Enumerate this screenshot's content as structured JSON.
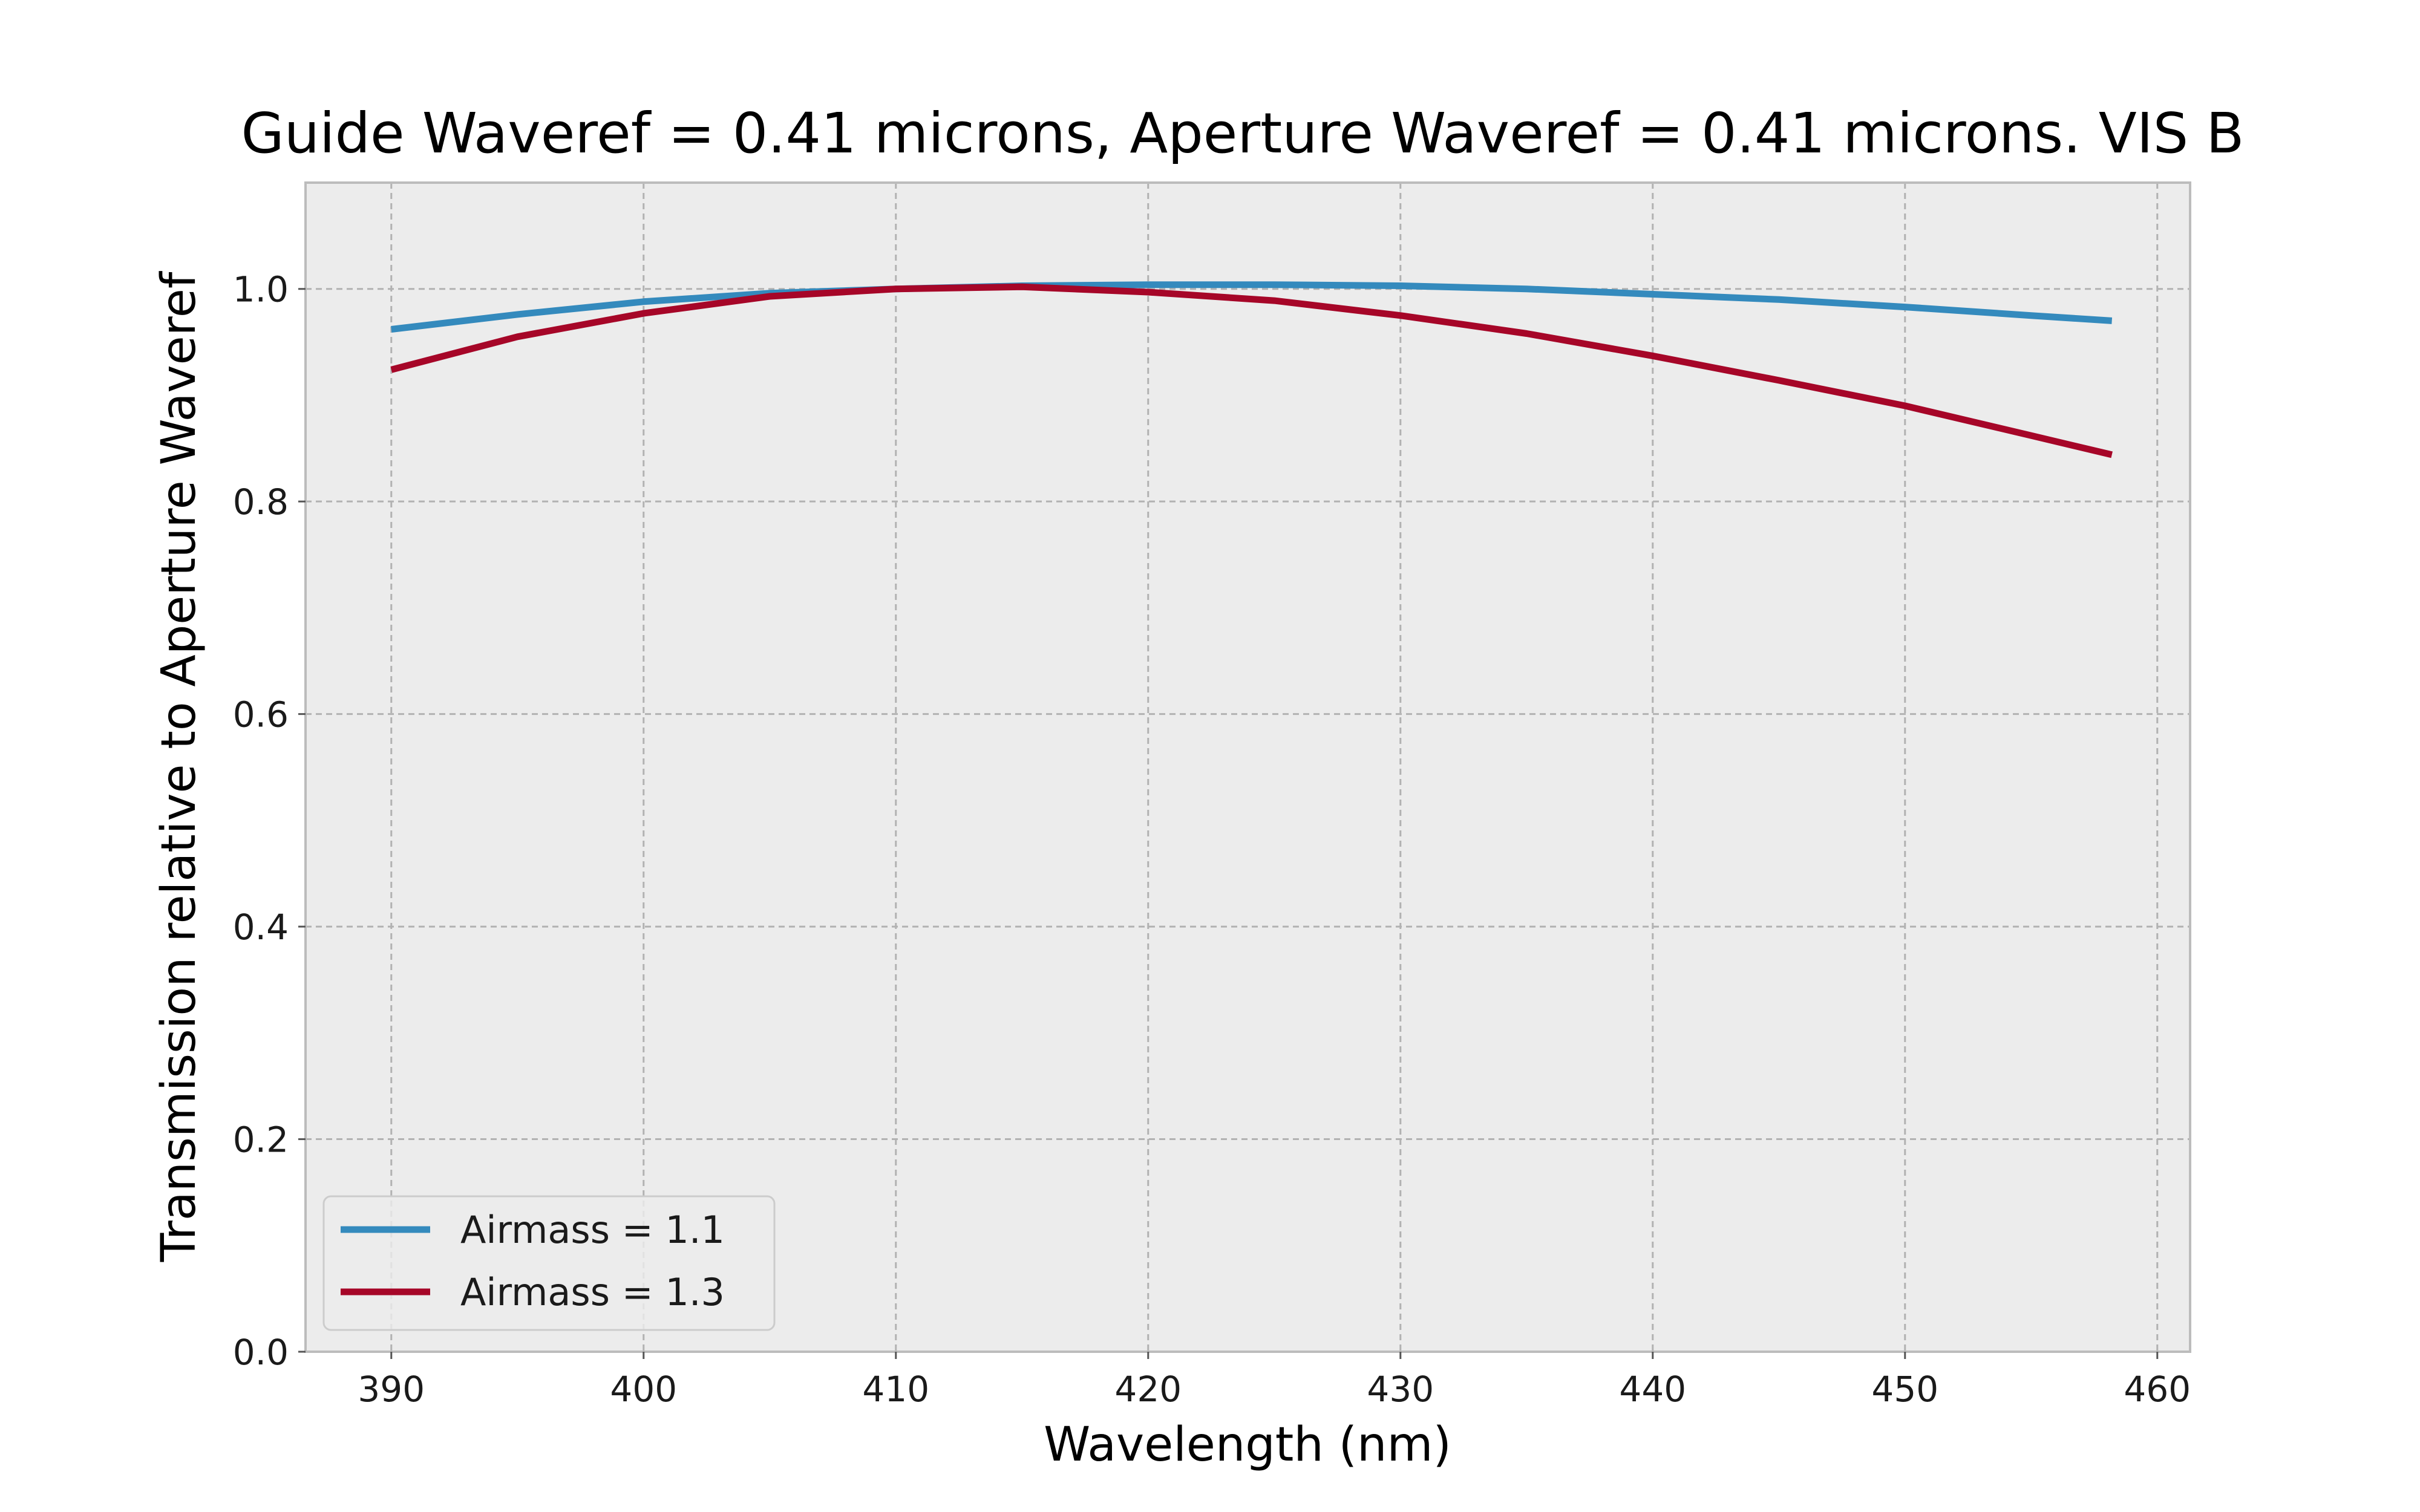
{
  "chart_data": {
    "type": "line",
    "title": "Guide Waveref = 0.41 microns, Aperture Waveref = 0.41 microns. VIS B",
    "xlabel": "Wavelength (nm)",
    "ylabel": "Transmission relative to Aperture Waveref",
    "xlim": [
      386.6,
      461.3
    ],
    "ylim": [
      0.0,
      1.1
    ],
    "xticks": [
      390,
      400,
      410,
      420,
      430,
      440,
      450,
      460
    ],
    "xtick_labels": [
      "390",
      "400",
      "410",
      "420",
      "430",
      "440",
      "450",
      "460"
    ],
    "yticks": [
      0.0,
      0.2,
      0.4,
      0.6,
      0.8,
      1.0
    ],
    "ytick_labels": [
      "0.0",
      "0.2",
      "0.4",
      "0.6",
      "0.8",
      "1.0"
    ],
    "grid": true,
    "legend_position": "lower-left",
    "background": "#ececec",
    "series": [
      {
        "name": "Airmass = 1.1",
        "color": "#348abd",
        "x": [
          390,
          395,
          400,
          405,
          410,
          415,
          420,
          425,
          430,
          435,
          440,
          445,
          450,
          455,
          458.2
        ],
        "y": [
          0.962,
          0.976,
          0.988,
          0.996,
          1.0,
          1.003,
          1.004,
          1.004,
          1.003,
          1.0,
          0.995,
          0.99,
          0.983,
          0.975,
          0.97
        ]
      },
      {
        "name": "Airmass = 1.3",
        "color": "#a60628",
        "x": [
          390,
          395,
          400,
          405,
          410,
          415,
          420,
          425,
          430,
          435,
          440,
          445,
          450,
          455,
          458.2
        ],
        "y": [
          0.924,
          0.955,
          0.977,
          0.993,
          1.0,
          1.002,
          0.997,
          0.989,
          0.975,
          0.958,
          0.937,
          0.914,
          0.89,
          0.862,
          0.844
        ]
      }
    ]
  }
}
